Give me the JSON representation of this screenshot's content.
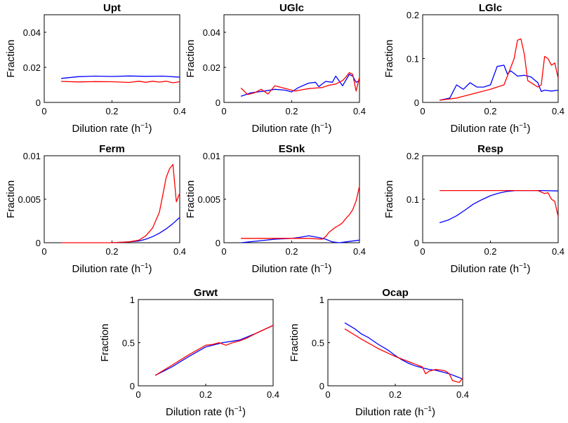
{
  "colors": {
    "series1": "#0000ff",
    "series2": "#ff0000"
  },
  "chart_data": [
    {
      "type": "line",
      "title": "Upt",
      "xlabel": "Dilution rate",
      "ylabel": "Fraction",
      "xlim": [
        0,
        0.4
      ],
      "ylim": [
        0,
        0.05
      ],
      "xticks": [
        0,
        0.2,
        0.4
      ],
      "xtick_labels": [
        "0",
        "0.2",
        "0.4"
      ],
      "yticks": [
        0,
        0.02,
        0.04
      ],
      "ytick_labels": [
        "0",
        "0.02",
        "0.04"
      ],
      "series": [
        {
          "name": "blue",
          "x": [
            0.05,
            0.1,
            0.15,
            0.2,
            0.25,
            0.3,
            0.35,
            0.4
          ],
          "y": [
            0.0137,
            0.0147,
            0.015,
            0.0148,
            0.0151,
            0.0149,
            0.015,
            0.0144
          ]
        },
        {
          "name": "red",
          "x": [
            0.05,
            0.1,
            0.15,
            0.2,
            0.25,
            0.28,
            0.3,
            0.32,
            0.34,
            0.36,
            0.38,
            0.4
          ],
          "y": [
            0.012,
            0.0117,
            0.0119,
            0.0118,
            0.0114,
            0.0121,
            0.0115,
            0.0121,
            0.0116,
            0.0121,
            0.0112,
            0.0118
          ]
        }
      ]
    },
    {
      "type": "line",
      "title": "UGlc",
      "xlabel": "Dilution rate",
      "ylabel": "Fraction",
      "xlim": [
        0,
        0.4
      ],
      "ylim": [
        0,
        0.05
      ],
      "xticks": [
        0,
        0.2,
        0.4
      ],
      "xtick_labels": [
        "0",
        "0.2",
        "0.4"
      ],
      "yticks": [
        0,
        0.02,
        0.04
      ],
      "ytick_labels": [
        "0",
        "0.02",
        "0.04"
      ],
      "series": [
        {
          "name": "blue",
          "x": [
            0.05,
            0.08,
            0.1,
            0.12,
            0.15,
            0.18,
            0.2,
            0.22,
            0.25,
            0.27,
            0.28,
            0.3,
            0.32,
            0.33,
            0.35,
            0.37,
            0.38,
            0.39,
            0.4
          ],
          "y": [
            0.0035,
            0.0055,
            0.006,
            0.0065,
            0.0075,
            0.007,
            0.006,
            0.0085,
            0.011,
            0.0115,
            0.009,
            0.012,
            0.0115,
            0.015,
            0.0095,
            0.016,
            0.015,
            0.0115,
            0.0125
          ]
        },
        {
          "name": "red",
          "x": [
            0.05,
            0.07,
            0.09,
            0.11,
            0.13,
            0.15,
            0.17,
            0.19,
            0.21,
            0.23,
            0.25,
            0.27,
            0.29,
            0.31,
            0.33,
            0.35,
            0.36,
            0.37,
            0.38,
            0.39,
            0.4
          ],
          "y": [
            0.0082,
            0.0045,
            0.0055,
            0.0075,
            0.0048,
            0.0095,
            0.0085,
            0.0075,
            0.0065,
            0.0072,
            0.0079,
            0.0082,
            0.0085,
            0.0098,
            0.0105,
            0.0125,
            0.0145,
            0.017,
            0.016,
            0.0065,
            0.0145
          ]
        }
      ]
    },
    {
      "type": "line",
      "title": "LGlc",
      "xlabel": "Dilution rate",
      "ylabel": "Fraction",
      "xlim": [
        0,
        0.4
      ],
      "ylim": [
        0,
        0.2
      ],
      "xticks": [
        0,
        0.2,
        0.4
      ],
      "xtick_labels": [
        "0",
        "0.2",
        "0.4"
      ],
      "yticks": [
        0,
        0.1,
        0.2
      ],
      "ytick_labels": [
        "0",
        "0.1",
        "0.2"
      ],
      "series": [
        {
          "name": "blue",
          "x": [
            0.05,
            0.08,
            0.1,
            0.12,
            0.14,
            0.16,
            0.18,
            0.2,
            0.22,
            0.24,
            0.25,
            0.26,
            0.28,
            0.3,
            0.32,
            0.34,
            0.35,
            0.36,
            0.38,
            0.4
          ],
          "y": [
            0.005,
            0.01,
            0.04,
            0.03,
            0.045,
            0.035,
            0.035,
            0.04,
            0.082,
            0.085,
            0.065,
            0.072,
            0.06,
            0.062,
            0.058,
            0.045,
            0.025,
            0.028,
            0.026,
            0.028
          ]
        },
        {
          "name": "red",
          "x": [
            0.05,
            0.1,
            0.15,
            0.2,
            0.22,
            0.24,
            0.26,
            0.27,
            0.28,
            0.29,
            0.3,
            0.31,
            0.32,
            0.33,
            0.34,
            0.35,
            0.36,
            0.37,
            0.38,
            0.39,
            0.4
          ],
          "y": [
            0.005,
            0.01,
            0.02,
            0.03,
            0.035,
            0.04,
            0.08,
            0.1,
            0.142,
            0.145,
            0.11,
            0.05,
            0.045,
            0.04,
            0.035,
            0.04,
            0.105,
            0.1,
            0.085,
            0.09,
            0.055
          ]
        }
      ]
    },
    {
      "type": "line",
      "title": "Ferm",
      "xlabel": "Dilution rate",
      "ylabel": "Fraction",
      "xlim": [
        0,
        0.4
      ],
      "ylim": [
        0,
        0.01
      ],
      "xticks": [
        0,
        0.2,
        0.4
      ],
      "xtick_labels": [
        "0",
        "0.2",
        "0.4"
      ],
      "yticks": [
        0,
        0.005,
        0.01
      ],
      "ytick_labels": [
        "0",
        "0.005",
        "0.01"
      ],
      "series": [
        {
          "name": "blue",
          "x": [
            0.2,
            0.25,
            0.28,
            0.3,
            0.32,
            0.34,
            0.36,
            0.38,
            0.4
          ],
          "y": [
            0,
            0.0001,
            0.0002,
            0.0004,
            0.0007,
            0.0011,
            0.0016,
            0.0022,
            0.0029
          ]
        },
        {
          "name": "red",
          "x": [
            0.05,
            0.1,
            0.15,
            0.2,
            0.25,
            0.28,
            0.3,
            0.32,
            0.34,
            0.35,
            0.36,
            0.37,
            0.38,
            0.39,
            0.4
          ],
          "y": [
            0,
            0,
            0,
            0,
            0.0001,
            0.0003,
            0.0008,
            0.0017,
            0.0035,
            0.0055,
            0.0075,
            0.0085,
            0.009,
            0.0047,
            0.0057
          ]
        }
      ]
    },
    {
      "type": "line",
      "title": "ESnk",
      "xlabel": "Dilution rate",
      "ylabel": "Fraction",
      "xlim": [
        0,
        0.4
      ],
      "ylim": [
        0,
        0.01
      ],
      "xticks": [
        0,
        0.2,
        0.4
      ],
      "xtick_labels": [
        "0",
        "0.2",
        "0.4"
      ],
      "yticks": [
        0,
        0.005,
        0.01
      ],
      "ytick_labels": [
        "0",
        "0.005",
        "0.01"
      ],
      "series": [
        {
          "name": "blue",
          "x": [
            0.05,
            0.1,
            0.15,
            0.2,
            0.22,
            0.25,
            0.28,
            0.3,
            0.32,
            0.34,
            0.36,
            0.4
          ],
          "y": [
            0,
            0.0002,
            0.0004,
            0.0005,
            0.0006,
            0.0008,
            0.0006,
            0.0004,
            0.0001,
            0,
            0.0001,
            0.0003
          ]
        },
        {
          "name": "red",
          "x": [
            0.05,
            0.1,
            0.15,
            0.2,
            0.25,
            0.29,
            0.3,
            0.31,
            0.32,
            0.33,
            0.34,
            0.35,
            0.36,
            0.37,
            0.38,
            0.39,
            0.4
          ],
          "y": [
            0.0005,
            0.0005,
            0.0005,
            0.0005,
            0.0005,
            0.0004,
            0.0007,
            0.0012,
            0.0015,
            0.0018,
            0.002,
            0.0023,
            0.0028,
            0.0032,
            0.0038,
            0.0048,
            0.0065
          ]
        }
      ]
    },
    {
      "type": "line",
      "title": "Resp",
      "xlabel": "Dilution rate",
      "ylabel": "Fraction",
      "xlim": [
        0,
        0.4
      ],
      "ylim": [
        0,
        0.2
      ],
      "xticks": [
        0,
        0.2,
        0.4
      ],
      "xtick_labels": [
        "0",
        "0.2",
        "0.4"
      ],
      "yticks": [
        0,
        0.1,
        0.2
      ],
      "ytick_labels": [
        "0",
        "0.1",
        "0.2"
      ],
      "series": [
        {
          "name": "blue",
          "x": [
            0.05,
            0.075,
            0.1,
            0.125,
            0.15,
            0.175,
            0.2,
            0.225,
            0.25,
            0.275,
            0.3,
            0.35,
            0.4
          ],
          "y": [
            0.046,
            0.052,
            0.062,
            0.075,
            0.089,
            0.099,
            0.108,
            0.114,
            0.118,
            0.12,
            0.12,
            0.12,
            0.119
          ]
        },
        {
          "name": "red",
          "x": [
            0.05,
            0.1,
            0.15,
            0.2,
            0.25,
            0.3,
            0.34,
            0.36,
            0.37,
            0.38,
            0.39,
            0.4
          ],
          "y": [
            0.12,
            0.12,
            0.12,
            0.12,
            0.12,
            0.12,
            0.12,
            0.113,
            0.115,
            0.1,
            0.095,
            0.06
          ]
        }
      ]
    },
    {
      "type": "line",
      "title": "Grwt",
      "xlabel": "Dilution rate",
      "ylabel": "Fraction",
      "xlim": [
        0,
        0.4
      ],
      "ylim": [
        0,
        1
      ],
      "xticks": [
        0,
        0.2,
        0.4
      ],
      "xtick_labels": [
        "0",
        "0.2",
        "0.4"
      ],
      "yticks": [
        0,
        0.5,
        1
      ],
      "ytick_labels": [
        "0",
        "0.5",
        "1"
      ],
      "series": [
        {
          "name": "blue",
          "x": [
            0.05,
            0.1,
            0.15,
            0.2,
            0.25,
            0.3,
            0.35,
            0.4
          ],
          "y": [
            0.12,
            0.22,
            0.34,
            0.45,
            0.5,
            0.53,
            0.61,
            0.7
          ]
        },
        {
          "name": "red",
          "x": [
            0.05,
            0.1,
            0.15,
            0.2,
            0.22,
            0.24,
            0.26,
            0.28,
            0.3,
            0.32,
            0.35,
            0.4
          ],
          "y": [
            0.12,
            0.24,
            0.36,
            0.47,
            0.48,
            0.5,
            0.47,
            0.5,
            0.52,
            0.55,
            0.61,
            0.7
          ]
        }
      ]
    },
    {
      "type": "line",
      "title": "Ocap",
      "xlabel": "Dilution rate",
      "ylabel": "Fraction",
      "xlim": [
        0,
        0.4
      ],
      "ylim": [
        0,
        1
      ],
      "xticks": [
        0,
        0.2,
        0.4
      ],
      "xtick_labels": [
        "0",
        "0.2",
        "0.4"
      ],
      "yticks": [
        0,
        0.5,
        1
      ],
      "ytick_labels": [
        "0",
        "0.5",
        "1"
      ],
      "series": [
        {
          "name": "blue",
          "x": [
            0.05,
            0.08,
            0.1,
            0.12,
            0.15,
            0.18,
            0.2,
            0.22,
            0.24,
            0.26,
            0.28,
            0.3,
            0.32,
            0.34,
            0.36,
            0.38,
            0.4
          ],
          "y": [
            0.73,
            0.66,
            0.6,
            0.56,
            0.48,
            0.41,
            0.35,
            0.3,
            0.26,
            0.23,
            0.21,
            0.19,
            0.18,
            0.16,
            0.14,
            0.11,
            0.08
          ]
        },
        {
          "name": "red",
          "x": [
            0.05,
            0.1,
            0.15,
            0.2,
            0.22,
            0.24,
            0.26,
            0.28,
            0.29,
            0.3,
            0.32,
            0.34,
            0.35,
            0.36,
            0.37,
            0.38,
            0.39,
            0.4
          ],
          "y": [
            0.66,
            0.54,
            0.43,
            0.34,
            0.31,
            0.28,
            0.25,
            0.22,
            0.14,
            0.17,
            0.19,
            0.18,
            0.17,
            0.14,
            0.06,
            0.05,
            0.04,
            0.09
          ]
        }
      ]
    }
  ]
}
